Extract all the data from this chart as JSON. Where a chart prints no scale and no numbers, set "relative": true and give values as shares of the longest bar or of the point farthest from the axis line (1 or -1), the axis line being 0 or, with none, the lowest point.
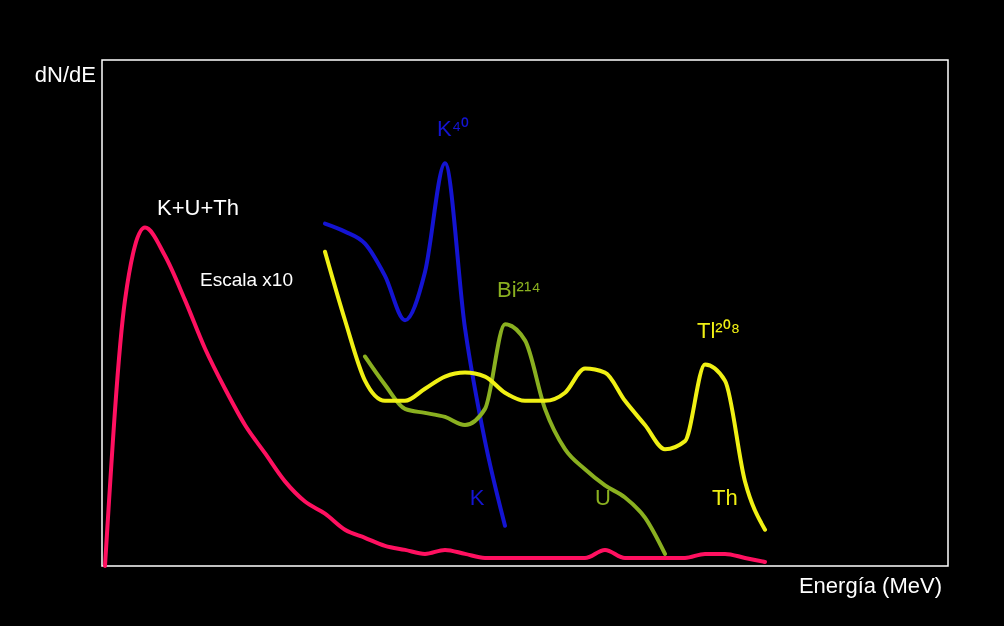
{
  "chart_data": {
    "type": "line",
    "relative": true,
    "xlabel": "Energía (MeV)",
    "ylabel": "dN/dE",
    "categories": [
      null,
      null,
      null,
      null,
      null,
      null,
      null,
      null,
      null,
      null,
      null,
      null,
      null,
      null,
      null,
      null,
      null,
      null,
      null,
      null,
      null,
      null,
      null,
      null,
      null,
      null,
      null,
      null,
      null,
      null,
      null,
      null,
      null,
      null,
      null,
      null,
      null,
      null,
      null,
      null,
      null,
      null,
      null
    ],
    "series": [
      {
        "name": "K+U+Th",
        "color": "#ff1060",
        "values": [
          0,
          0.66,
          0.84,
          0.77,
          0.66,
          0.54,
          0.44,
          0.35,
          0.28,
          0.21,
          0.16,
          0.13,
          0.09,
          0.07,
          0.05,
          0.04,
          0.03,
          0.04,
          0.03,
          0.02,
          0.02,
          0.02,
          0.02,
          0.02,
          0.02,
          0.04,
          0.02,
          0.02,
          0.02,
          0.02,
          0.03,
          0.03,
          0.02,
          0.01,
          null,
          null,
          null,
          null,
          null,
          null,
          null,
          null,
          null
        ]
      },
      {
        "name": "K",
        "color": "#1414d2",
        "values": [
          null,
          null,
          null,
          null,
          null,
          null,
          null,
          null,
          null,
          null,
          null,
          0.85,
          0.83,
          0.8,
          0.72,
          0.61,
          0.73,
          1.0,
          0.59,
          0.31,
          0.1,
          null,
          null,
          null,
          null,
          null,
          null,
          null,
          null,
          null,
          null,
          null,
          null,
          null,
          null,
          null,
          null,
          null,
          null,
          null,
          null,
          null,
          null
        ]
      },
      {
        "name": "U",
        "color": "#8ab020",
        "values": [
          null,
          null,
          null,
          null,
          null,
          null,
          null,
          null,
          null,
          null,
          null,
          null,
          null,
          0.52,
          0.45,
          0.39,
          0.38,
          0.37,
          0.35,
          0.39,
          0.6,
          0.56,
          0.39,
          0.29,
          0.24,
          0.2,
          0.17,
          0.12,
          0.03,
          null,
          null,
          null,
          null,
          null,
          null,
          null,
          null,
          null,
          null,
          null,
          null,
          null,
          null
        ]
      },
      {
        "name": "Th",
        "color": "#f0f014",
        "values": [
          null,
          null,
          null,
          null,
          null,
          null,
          null,
          null,
          null,
          null,
          null,
          0.78,
          0.61,
          0.46,
          0.41,
          0.41,
          0.44,
          0.47,
          0.48,
          0.47,
          0.43,
          0.41,
          0.41,
          0.43,
          0.49,
          0.48,
          0.41,
          0.35,
          0.29,
          0.31,
          0.5,
          0.46,
          0.21,
          0.09,
          null,
          null,
          null,
          null,
          null,
          null,
          null,
          null,
          null
        ]
      }
    ],
    "annotations": [
      "K⁴⁰",
      "Bi²¹⁴",
      "Tl²⁰⁸",
      "Escala x10"
    ]
  }
}
